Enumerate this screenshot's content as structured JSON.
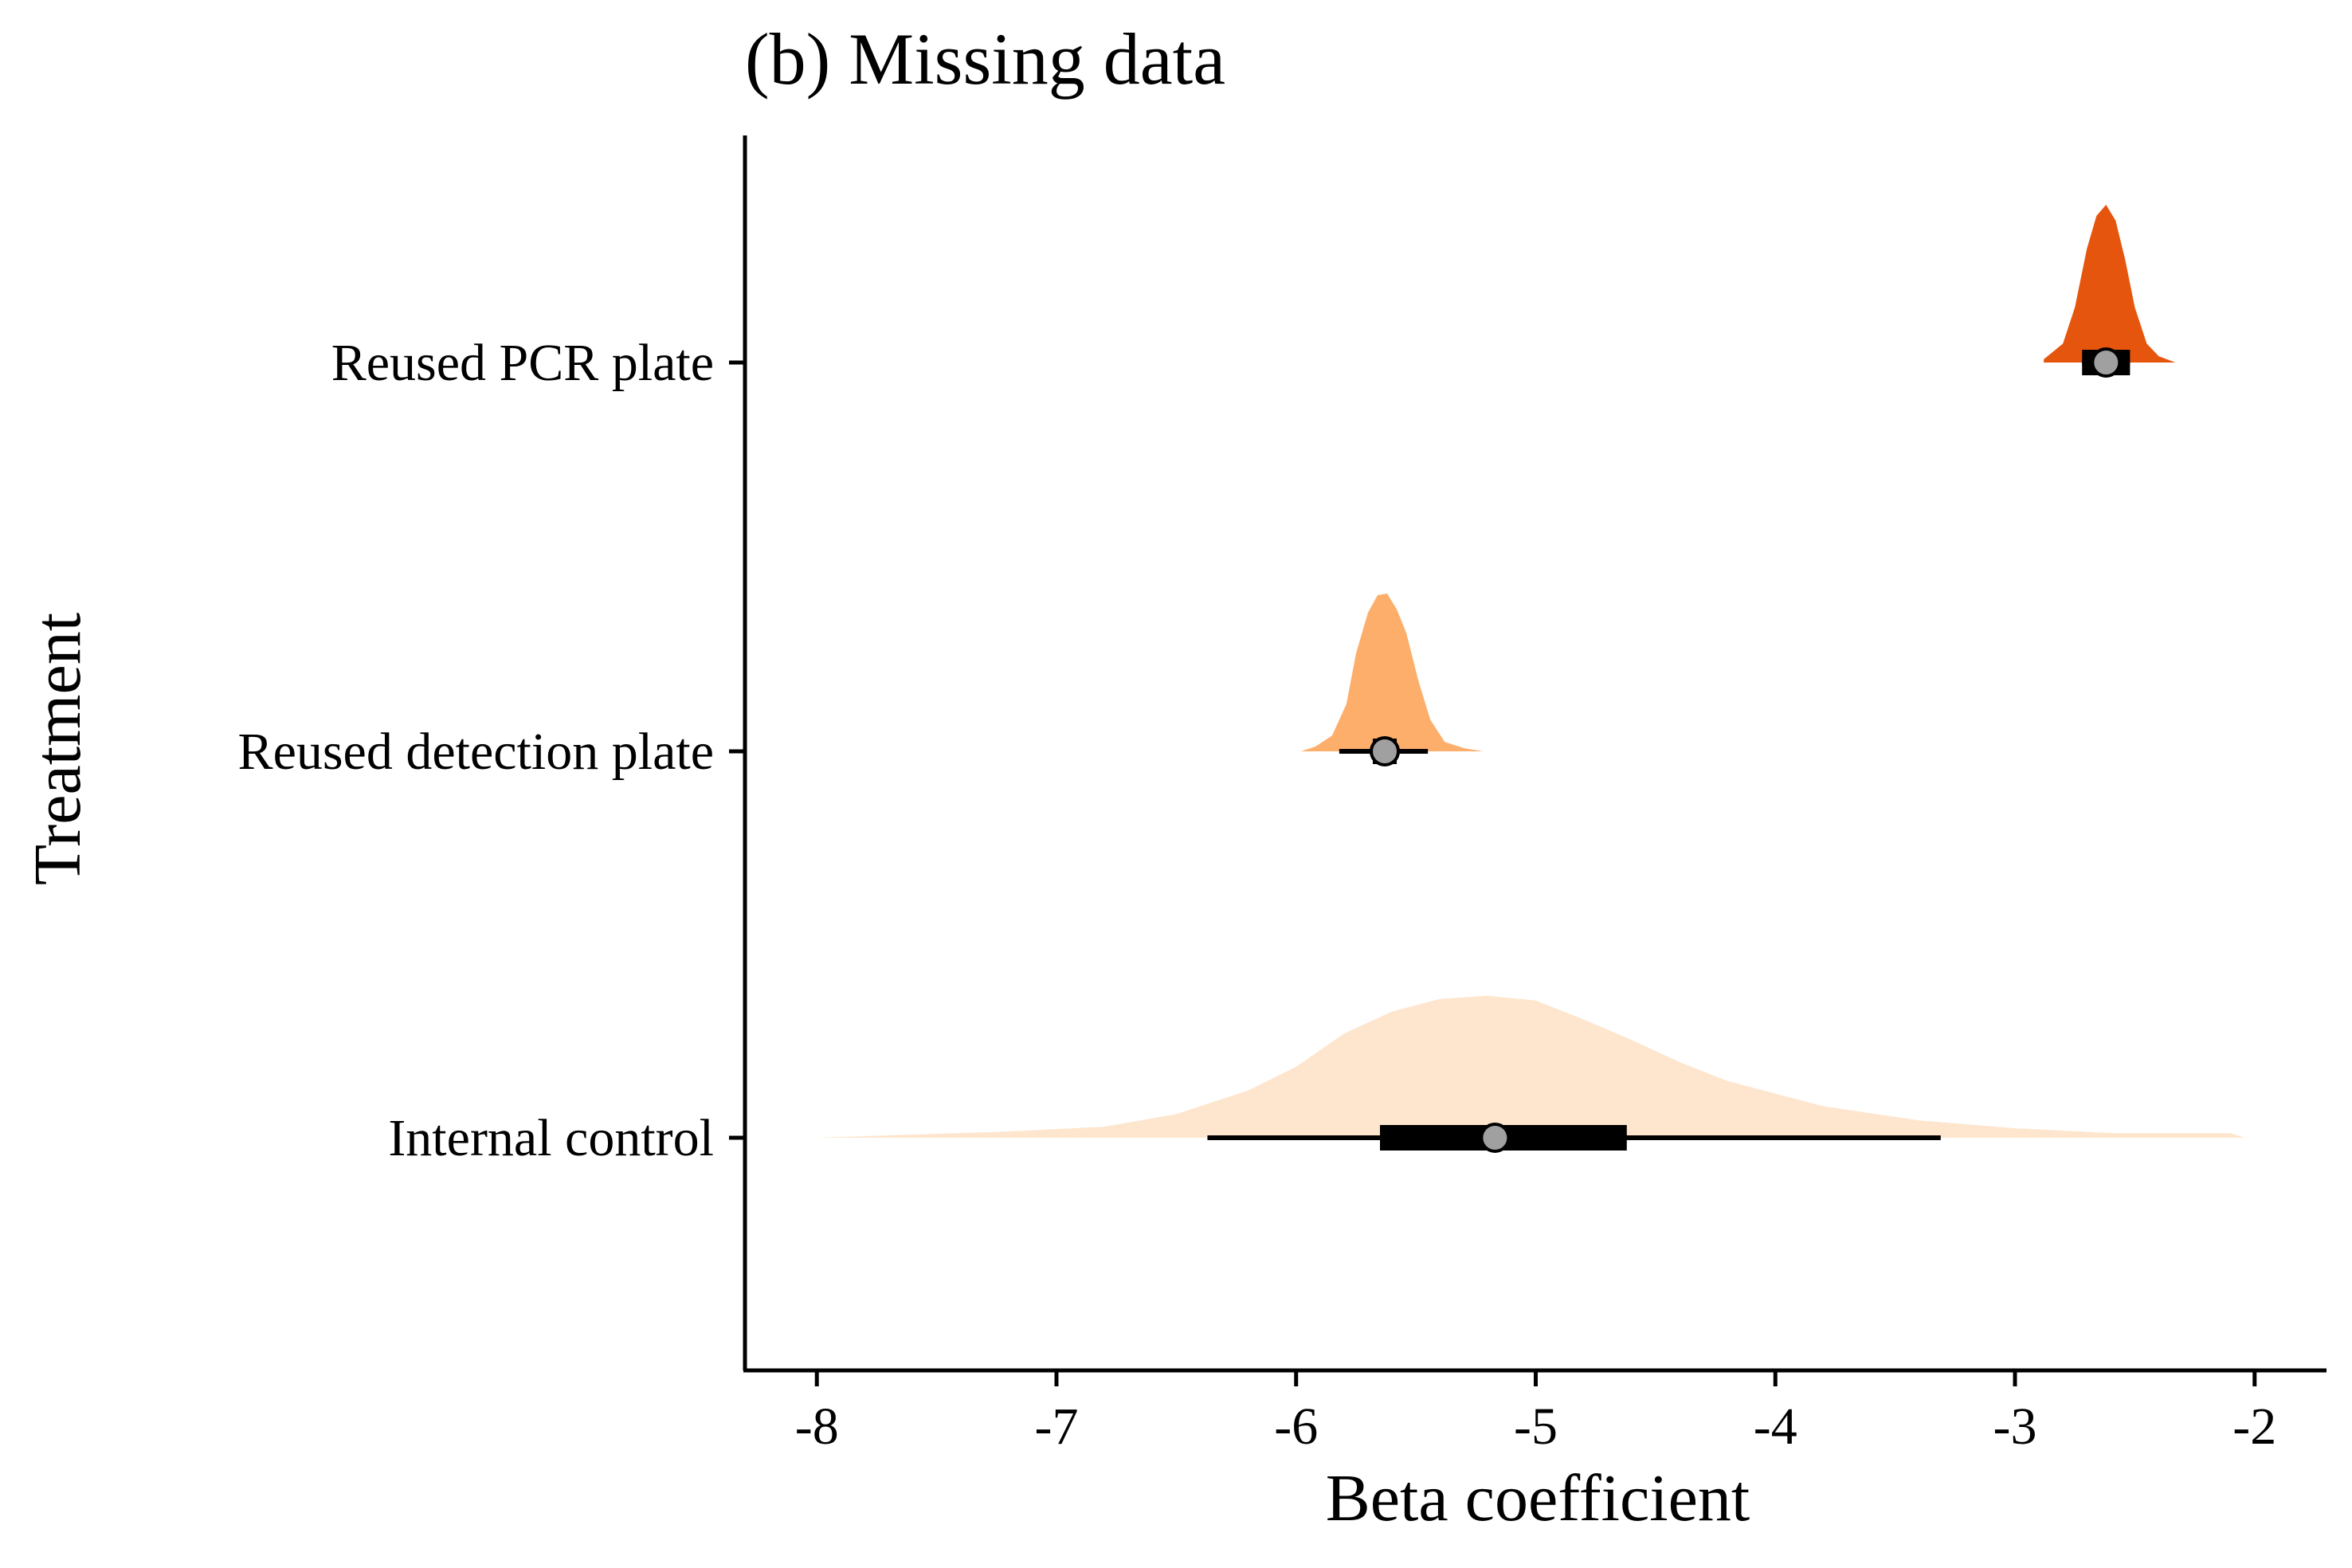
{
  "chart_data": {
    "type": "halfeye",
    "title": "(b) Missing data",
    "xlabel": "Beta coefficient",
    "ylabel": "Treatment",
    "xlim": [
      -8.3,
      -1.7
    ],
    "x_ticks": [
      -8,
      -7,
      -6,
      -5,
      -4,
      -3,
      -2
    ],
    "x_tick_labels": [
      "-8",
      "-7",
      "-6",
      "-5",
      "-4",
      "-3",
      "-2"
    ],
    "grid": false,
    "legend": "none",
    "series": [
      {
        "category": "Reused PCR plate",
        "color": "#e6550d",
        "point": -2.62,
        "interval_66": [
          -2.72,
          -2.52
        ],
        "interval_95": [
          -2.72,
          -2.52
        ],
        "density": [
          [
            -2.88,
            0.02
          ],
          [
            -2.8,
            0.12
          ],
          [
            -2.75,
            0.35
          ],
          [
            -2.7,
            0.72
          ],
          [
            -2.66,
            0.93
          ],
          [
            -2.62,
            1.0
          ],
          [
            -2.58,
            0.9
          ],
          [
            -2.54,
            0.65
          ],
          [
            -2.5,
            0.35
          ],
          [
            -2.45,
            0.12
          ],
          [
            -2.4,
            0.04
          ],
          [
            -2.33,
            0.0
          ]
        ]
      },
      {
        "category": "Reused detection plate",
        "color": "#fdae6b",
        "point": -5.63,
        "interval_66": [
          -5.68,
          -5.58
        ],
        "interval_95": [
          -5.82,
          -5.45
        ],
        "density": [
          [
            -5.98,
            0.0
          ],
          [
            -5.92,
            0.03
          ],
          [
            -5.85,
            0.1
          ],
          [
            -5.79,
            0.3
          ],
          [
            -5.75,
            0.62
          ],
          [
            -5.7,
            0.88
          ],
          [
            -5.66,
            0.99
          ],
          [
            -5.62,
            1.0
          ],
          [
            -5.58,
            0.9
          ],
          [
            -5.54,
            0.75
          ],
          [
            -5.49,
            0.45
          ],
          [
            -5.44,
            0.2
          ],
          [
            -5.38,
            0.06
          ],
          [
            -5.3,
            0.02
          ],
          [
            -5.22,
            0.0
          ]
        ]
      },
      {
        "category": "Internal control",
        "color": "#fee6ce",
        "point": -5.17,
        "interval_66": [
          -5.65,
          -4.62
        ],
        "interval_95": [
          -6.37,
          -3.31
        ],
        "density": [
          [
            -8.0,
            0.0
          ],
          [
            -7.6,
            0.02
          ],
          [
            -7.2,
            0.04
          ],
          [
            -6.8,
            0.07
          ],
          [
            -6.5,
            0.15
          ],
          [
            -6.2,
            0.3
          ],
          [
            -6.0,
            0.45
          ],
          [
            -5.8,
            0.66
          ],
          [
            -5.6,
            0.8
          ],
          [
            -5.4,
            0.88
          ],
          [
            -5.2,
            0.9
          ],
          [
            -5.0,
            0.87
          ],
          [
            -4.8,
            0.75
          ],
          [
            -4.6,
            0.62
          ],
          [
            -4.4,
            0.48
          ],
          [
            -4.2,
            0.36
          ],
          [
            -3.8,
            0.2
          ],
          [
            -3.4,
            0.11
          ],
          [
            -3.0,
            0.06
          ],
          [
            -2.6,
            0.03
          ],
          [
            -2.1,
            0.03
          ],
          [
            -2.04,
            0.0
          ]
        ]
      }
    ]
  }
}
